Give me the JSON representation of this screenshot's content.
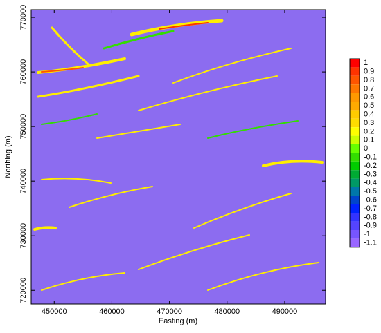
{
  "chart_data": {
    "type": "heatmap",
    "x_label": "Easting (m)",
    "y_label": "Northing (m)",
    "xlim": [
      446000,
      497100
    ],
    "xticks": [
      450000,
      460000,
      470000,
      480000,
      490000
    ],
    "ylim": [
      717500,
      771400
    ],
    "yticks": [
      720000,
      730000,
      740000,
      750000,
      760000,
      770000
    ],
    "colorbar": {
      "levels": [
        1,
        0.9,
        0.8,
        0.7,
        0.6,
        0.5,
        0.4,
        0.3,
        0.2,
        0.1,
        0,
        -0.1,
        -0.2,
        -0.3,
        -0.4,
        -0.5,
        -0.6,
        -0.7,
        -0.8,
        -0.9,
        -1,
        -1.1
      ],
      "colors": [
        "#ff0000",
        "#ff3300",
        "#ff5500",
        "#ff7700",
        "#ff9900",
        "#ffaa00",
        "#ffcc00",
        "#ffdd00",
        "#ffff00",
        "#ccff00",
        "#66ff00",
        "#33dd00",
        "#00cc00",
        "#00aa33",
        "#009966",
        "#0077aa",
        "#0044cc",
        "#0022ff",
        "#3333ff",
        "#5544ff",
        "#7755ff",
        "#9966ff"
      ]
    }
  }
}
